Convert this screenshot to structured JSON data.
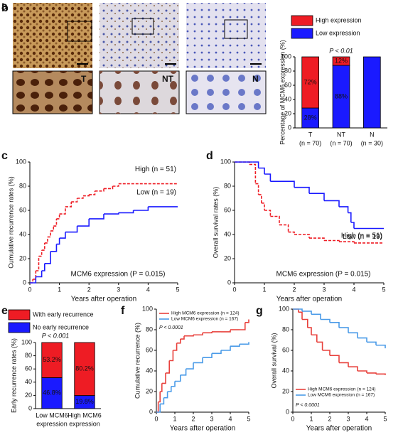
{
  "panel_a": {
    "letter": "a",
    "insets": [
      "T",
      "NT",
      "N"
    ]
  },
  "chart_data": [
    {
      "type": "stacked-bar",
      "panel": "b",
      "y_label": "Percentage of MCM6 expression (%)",
      "annotation": "P < 0.01",
      "categories": [
        "T",
        "NT",
        "N"
      ],
      "category_sublabels": [
        "(n = 70)",
        "(n = 70)",
        "(n = 30)"
      ],
      "series": [
        {
          "name": "High expression",
          "color": "#ee1c24",
          "values": [
            72,
            12,
            0
          ],
          "value_labels": [
            "72%",
            "12%",
            null
          ]
        },
        {
          "name": "Low expression",
          "color": "#1a1aff",
          "values": [
            28,
            88,
            100
          ],
          "value_labels": [
            "28%",
            "88%",
            null
          ]
        }
      ],
      "ylim": [
        0,
        100
      ],
      "yticks": [
        0,
        20,
        40,
        60,
        80,
        100
      ],
      "legend": "top"
    },
    {
      "type": "km",
      "panel": "c",
      "y_label": "Cumulative recurrence rates (%)",
      "x_label": "Years after operation",
      "annotation": "MCM6 expression (P = 0.015)",
      "series": [
        {
          "name": "High (n = 51)",
          "color": "#ee1c24",
          "dash": true,
          "x": [
            0,
            0.1,
            0.2,
            0.3,
            0.4,
            0.5,
            0.6,
            0.7,
            0.8,
            0.9,
            1.0,
            1.2,
            1.4,
            1.6,
            1.8,
            2.0,
            2.2,
            2.5,
            2.8,
            3.0,
            5
          ],
          "values": [
            0,
            3,
            10,
            22,
            27,
            33,
            38,
            43,
            47,
            53,
            57,
            63,
            67,
            70,
            72,
            73,
            76,
            78,
            80,
            82,
            82
          ]
        },
        {
          "name": "Low (n = 19)",
          "color": "#1a1aff",
          "dash": false,
          "x": [
            0,
            0.2,
            0.4,
            0.5,
            0.7,
            0.9,
            1.0,
            1.2,
            1.6,
            2.0,
            2.5,
            3.0,
            3.5,
            4.0,
            5
          ],
          "values": [
            0,
            5,
            10,
            16,
            26,
            32,
            37,
            42,
            47,
            53,
            57,
            58,
            60,
            63,
            63
          ]
        }
      ],
      "xlim": [
        0,
        5
      ],
      "xticks": [
        0,
        1,
        2,
        3,
        4,
        5
      ],
      "ylim": [
        0,
        100
      ],
      "yticks": [
        0,
        20,
        40,
        60,
        80,
        100
      ],
      "legend": "curve-labels"
    },
    {
      "type": "km",
      "panel": "d",
      "y_label": "Overall survival rates (%)",
      "x_label": "Years after operation",
      "annotation": "MCM6 expression (P = 0.015)",
      "series": [
        {
          "name": "High (n = 51)",
          "color": "#ee1c24",
          "dash": true,
          "x": [
            0,
            0.5,
            0.7,
            0.8,
            0.9,
            1.0,
            1.2,
            1.5,
            1.8,
            2,
            2.5,
            3,
            3.5,
            4,
            5
          ],
          "values": [
            100,
            98,
            82,
            73,
            66,
            60,
            55,
            48,
            42,
            40,
            37,
            35,
            34,
            33,
            33
          ]
        },
        {
          "name": "Low (n = 19)",
          "color": "#1a1aff",
          "dash": false,
          "x": [
            0,
            0.6,
            0.8,
            1.0,
            1.2,
            1.5,
            2,
            2.5,
            3,
            3.5,
            3.8,
            3.9,
            4.0,
            5
          ],
          "values": [
            100,
            100,
            95,
            90,
            84,
            84,
            79,
            74,
            68,
            63,
            58,
            50,
            45,
            45
          ]
        }
      ],
      "xlim": [
        0,
        5
      ],
      "xticks": [
        0,
        1,
        2,
        3,
        4,
        5
      ],
      "ylim": [
        0,
        100
      ],
      "yticks": [
        0,
        20,
        40,
        60,
        80,
        100
      ],
      "legend": "curve-labels"
    },
    {
      "type": "stacked-bar",
      "panel": "e",
      "y_label": "Early recurrence rates (%)",
      "annotation": "P < 0.001",
      "categories": [
        "Low MCM6",
        "High MCM6"
      ],
      "category_sublabels": [
        "expression",
        "expression"
      ],
      "series": [
        {
          "name": "With early recurrence",
          "color": "#ee1c24",
          "values": [
            53.2,
            80.2
          ],
          "value_labels": [
            "53.2%",
            "80.2%"
          ]
        },
        {
          "name": "No early recurrence",
          "color": "#1a1aff",
          "values": [
            46.8,
            19.8
          ],
          "value_labels": [
            "46.8%",
            "19.8%"
          ]
        }
      ],
      "ylim": [
        0,
        100
      ],
      "yticks": [
        0,
        20,
        40,
        60,
        80,
        100
      ],
      "legend": "top-left"
    },
    {
      "type": "km",
      "panel": "f",
      "y_label": "Cumulative recurrence (%)",
      "x_label": "Years after operation",
      "annotation": "P < 0.0001",
      "series": [
        {
          "name": "High MCM6 expression (n = 124)",
          "color": "#e8413c",
          "dash": false,
          "x": [
            0,
            0.1,
            0.2,
            0.3,
            0.5,
            0.7,
            0.9,
            1.1,
            1.3,
            1.5,
            2,
            2.5,
            3,
            3.5,
            4,
            4.5,
            4.8,
            5
          ],
          "values": [
            0,
            10,
            20,
            28,
            38,
            50,
            60,
            67,
            71,
            74,
            75,
            77,
            78,
            78,
            80,
            80,
            87,
            90
          ]
        },
        {
          "name": "Low MCM6 expression (n = 167)",
          "color": "#4a9be8",
          "dash": false,
          "x": [
            0,
            0.2,
            0.4,
            0.6,
            0.8,
            1,
            1.3,
            1.6,
            2,
            2.5,
            3,
            3.5,
            4,
            4.5,
            5
          ],
          "values": [
            0,
            8,
            14,
            20,
            25,
            30,
            36,
            42,
            48,
            53,
            57,
            60,
            64,
            66,
            68
          ]
        }
      ],
      "xlim": [
        0,
        5
      ],
      "xticks": [
        0,
        1,
        2,
        3,
        4,
        5
      ],
      "ylim": [
        0,
        100
      ],
      "yticks": [
        0,
        20,
        40,
        60,
        80,
        100
      ],
      "legend": "top-left"
    },
    {
      "type": "km",
      "panel": "g",
      "y_label": "Overall survival (%)",
      "x_label": "Years after operation",
      "annotation": "P < 0.0001",
      "series": [
        {
          "name": "High MCM6 expression (n = 124)",
          "color": "#e8413c",
          "dash": false,
          "x": [
            0,
            0.3,
            0.5,
            0.8,
            1,
            1.3,
            1.6,
            2,
            2.5,
            3,
            3.5,
            4,
            4.5,
            5
          ],
          "values": [
            100,
            97,
            90,
            82,
            75,
            68,
            60,
            55,
            48,
            44,
            40,
            38,
            37,
            36
          ]
        },
        {
          "name": "Low MCM6 expression (n = 167)",
          "color": "#4a9be8",
          "dash": false,
          "x": [
            0,
            0.5,
            1,
            1.5,
            2,
            2.5,
            3,
            3.5,
            4,
            4.5,
            5
          ],
          "values": [
            100,
            98,
            95,
            90,
            87,
            82,
            77,
            72,
            68,
            65,
            62
          ]
        }
      ],
      "xlim": [
        0,
        5
      ],
      "xticks": [
        0,
        1,
        2,
        3,
        4,
        5
      ],
      "ylim": [
        0,
        100
      ],
      "yticks": [
        0,
        20,
        40,
        60,
        80,
        100
      ],
      "legend": "bottom-left"
    }
  ]
}
